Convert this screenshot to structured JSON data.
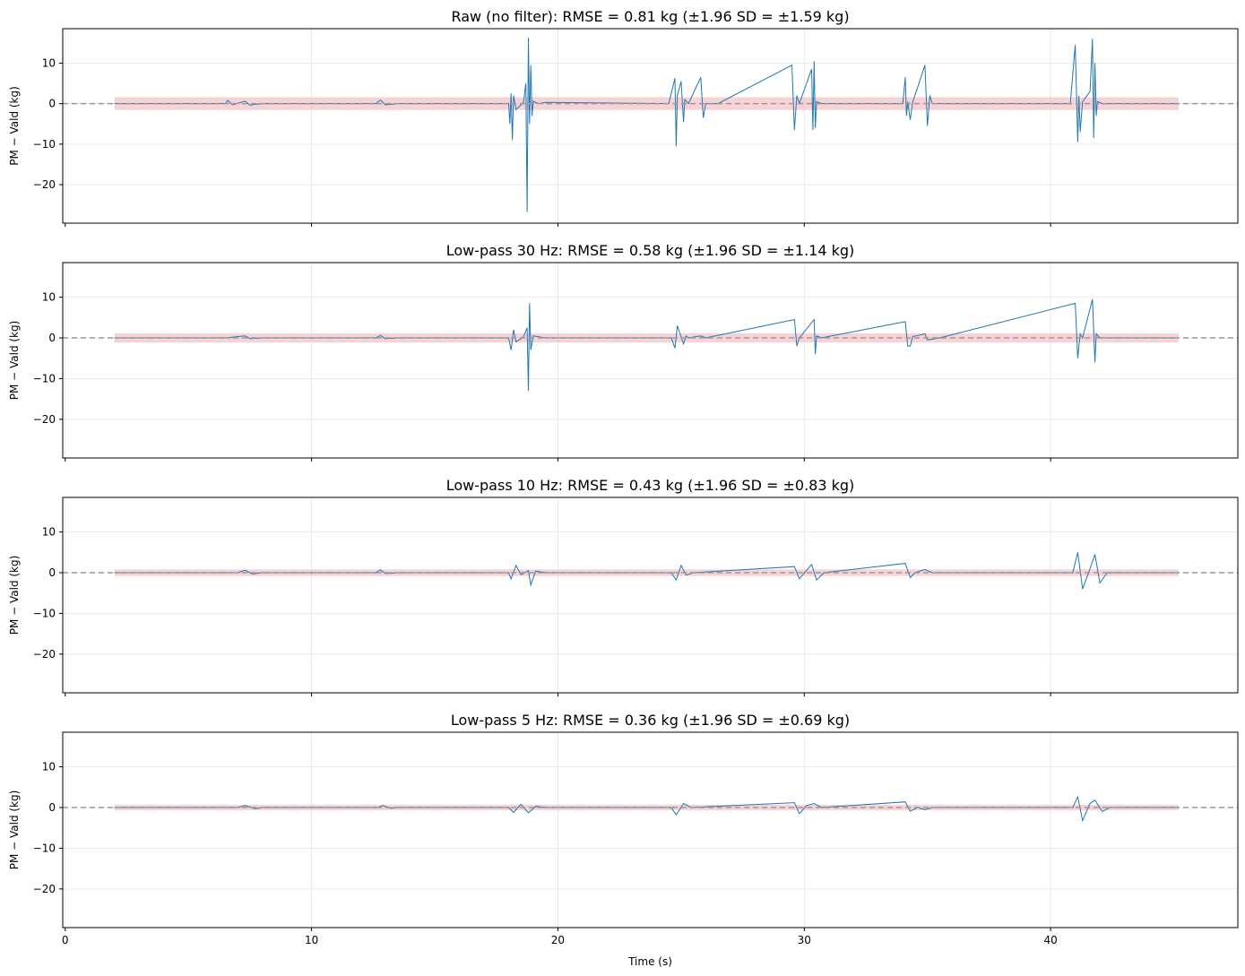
{
  "figure": {
    "xlabel": "Time (s)"
  },
  "chart_data": [
    {
      "type": "line",
      "title": "Raw (no filter): RMSE = 0.81 kg  (±1.96 SD = ±1.59 kg)",
      "ylabel": "PM − Vald (kg)",
      "xlabel": "",
      "xlim": [
        -0.1,
        47.6
      ],
      "ylim": [
        -29.5,
        18.5
      ],
      "xticks": [
        0,
        10,
        20,
        30,
        40
      ],
      "yticks": [
        -20,
        -10,
        0,
        10
      ],
      "grid": true,
      "band": [
        -1.59,
        1.59
      ],
      "refline": 0,
      "colors": {
        "line": "#1f77b4",
        "band": "#f4b6bb",
        "refline": "#999999"
      },
      "series": [
        {
          "x": [
            2.0,
            6.5,
            6.6,
            6.8,
            7.3,
            7.5,
            7.7,
            8.0,
            12.6,
            12.8,
            13.0,
            13.5,
            18.0,
            18.05,
            18.1,
            18.15,
            18.2,
            18.3,
            18.6,
            18.7,
            18.75,
            18.8,
            18.85,
            18.9,
            18.95,
            19.0,
            19.2,
            19.5,
            24.5,
            24.75,
            24.8,
            24.85,
            25.0,
            25.1,
            25.15,
            25.3,
            25.8,
            25.9,
            26.0,
            26.5,
            29.5,
            29.6,
            29.7,
            29.8,
            30.3,
            30.35,
            30.4,
            30.45,
            30.5,
            30.7,
            34.0,
            34.1,
            34.15,
            34.2,
            34.3,
            34.4,
            34.9,
            35.0,
            35.1,
            35.2,
            35.5,
            40.8,
            41.0,
            41.1,
            41.15,
            41.2,
            41.3,
            41.6,
            41.7,
            41.75,
            41.8,
            41.85,
            41.9,
            42.1,
            45.2
          ],
          "y": [
            0.0,
            0.0,
            0.8,
            -0.3,
            0.6,
            -0.4,
            -0.2,
            0.0,
            0.0,
            0.9,
            -0.3,
            0.0,
            0.0,
            -5.0,
            2.5,
            -9.0,
            2.0,
            -1.5,
            0.3,
            5.0,
            -26.8,
            16.2,
            -5.0,
            9.5,
            -3.0,
            0.6,
            0.0,
            0.3,
            0.0,
            6.3,
            -10.5,
            2.0,
            5.5,
            -4.5,
            1.0,
            0.0,
            6.5,
            -3.5,
            0.0,
            0.0,
            9.5,
            -6.5,
            2.0,
            0.0,
            8.5,
            -6.5,
            10.5,
            -6.0,
            0.5,
            0.0,
            0.0,
            6.5,
            -3.0,
            0.5,
            -4.0,
            0.3,
            9.5,
            -5.5,
            2.0,
            0.0,
            0.0,
            0.0,
            14.5,
            -9.5,
            2.0,
            -7.0,
            0.5,
            3.0,
            16.0,
            -8.5,
            10.0,
            -3.0,
            0.5,
            0.0,
            0.0
          ]
        }
      ]
    },
    {
      "type": "line",
      "title": "Low-pass 30 Hz: RMSE = 0.58 kg  (±1.96 SD = ±1.14 kg)",
      "ylabel": "PM − Vald (kg)",
      "xlabel": "",
      "xlim": [
        -0.1,
        47.6
      ],
      "ylim": [
        -29.5,
        18.5
      ],
      "xticks": [
        0,
        10,
        20,
        30,
        40
      ],
      "yticks": [
        -20,
        -10,
        0,
        10
      ],
      "grid": true,
      "band": [
        -1.14,
        1.14
      ],
      "refline": 0,
      "colors": {
        "line": "#1f77b4",
        "band": "#f4b6bb",
        "refline": "#999999"
      },
      "series": [
        {
          "x": [
            2.0,
            6.5,
            7.3,
            7.5,
            8.0,
            12.6,
            12.8,
            13.0,
            13.5,
            18.0,
            18.1,
            18.2,
            18.3,
            18.6,
            18.75,
            18.8,
            18.85,
            18.9,
            19.0,
            19.5,
            24.6,
            24.75,
            24.85,
            25.1,
            25.2,
            25.3,
            25.8,
            26.0,
            29.6,
            29.7,
            29.8,
            30.4,
            30.45,
            30.5,
            30.7,
            34.1,
            34.2,
            34.3,
            34.4,
            34.9,
            35.0,
            35.5,
            41.0,
            41.1,
            41.2,
            41.3,
            41.7,
            41.8,
            41.85,
            42.0,
            45.2
          ],
          "y": [
            0.0,
            0.0,
            0.5,
            -0.2,
            0.0,
            0.0,
            0.6,
            -0.2,
            0.0,
            0.0,
            -3.0,
            2.0,
            -1.0,
            0.2,
            2.5,
            -13.0,
            8.5,
            -3.0,
            0.5,
            0.0,
            0.0,
            -2.5,
            3.0,
            -1.5,
            0.5,
            0.0,
            0.5,
            0.0,
            4.5,
            -2.0,
            0.0,
            4.5,
            -4.0,
            0.5,
            0.0,
            4.0,
            -2.0,
            -2.0,
            0.3,
            1.0,
            -0.5,
            0.0,
            8.5,
            -5.0,
            1.0,
            0.0,
            9.5,
            -6.0,
            1.0,
            0.0,
            0.0
          ]
        }
      ]
    },
    {
      "type": "line",
      "title": "Low-pass 10 Hz: RMSE = 0.43 kg  (±1.96 SD = ±0.83 kg)",
      "ylabel": "PM − Vald (kg)",
      "xlabel": "",
      "xlim": [
        -0.1,
        47.6
      ],
      "ylim": [
        -29.5,
        18.5
      ],
      "xticks": [
        0,
        10,
        20,
        30,
        40
      ],
      "yticks": [
        -20,
        -10,
        0,
        10
      ],
      "grid": true,
      "band": [
        -0.83,
        0.83
      ],
      "refline": 0,
      "colors": {
        "line": "#1f77b4",
        "band": "#f4b6bb",
        "refline": "#999999"
      },
      "series": [
        {
          "x": [
            2.0,
            7.0,
            7.3,
            7.6,
            8.0,
            12.6,
            12.8,
            13.0,
            13.5,
            18.0,
            18.1,
            18.3,
            18.5,
            18.8,
            18.9,
            19.1,
            19.5,
            24.6,
            24.8,
            25.0,
            25.2,
            25.5,
            29.6,
            29.8,
            30.3,
            30.5,
            30.8,
            34.1,
            34.3,
            34.5,
            34.9,
            35.2,
            40.9,
            41.1,
            41.3,
            41.6,
            41.8,
            42.0,
            42.3,
            45.2
          ],
          "y": [
            0.0,
            0.0,
            0.6,
            -0.3,
            0.0,
            0.0,
            0.7,
            -0.2,
            0.0,
            0.0,
            -1.5,
            1.8,
            -0.5,
            0.5,
            -3.0,
            0.4,
            0.0,
            0.0,
            -1.8,
            1.8,
            -0.6,
            0.0,
            1.5,
            -1.5,
            2.0,
            -1.8,
            0.0,
            2.3,
            -1.2,
            0.0,
            0.8,
            0.0,
            0.0,
            5.0,
            -4.0,
            1.0,
            4.5,
            -2.5,
            0.0,
            0.0
          ]
        }
      ]
    },
    {
      "type": "line",
      "title": "Low-pass 5 Hz: RMSE = 0.36 kg  (±1.96 SD = ±0.69 kg)",
      "ylabel": "PM − Vald (kg)",
      "xlabel": "Time (s)",
      "xlim": [
        -0.1,
        47.6
      ],
      "ylim": [
        -29.5,
        18.5
      ],
      "xticks": [
        0,
        10,
        20,
        30,
        40
      ],
      "yticks": [
        -20,
        -10,
        0,
        10
      ],
      "grid": true,
      "band": [
        -0.69,
        0.69
      ],
      "refline": 0,
      "colors": {
        "line": "#1f77b4",
        "band": "#f4b6bb",
        "refline": "#999999"
      },
      "series": [
        {
          "x": [
            2.0,
            7.0,
            7.3,
            7.7,
            8.0,
            12.7,
            12.9,
            13.2,
            13.5,
            18.0,
            18.2,
            18.5,
            18.8,
            19.1,
            19.5,
            24.6,
            24.8,
            25.1,
            25.4,
            29.6,
            29.8,
            30.1,
            30.4,
            30.7,
            34.1,
            34.3,
            34.6,
            34.9,
            35.2,
            40.9,
            41.1,
            41.3,
            41.6,
            41.8,
            42.1,
            42.4,
            45.2
          ],
          "y": [
            0.0,
            0.0,
            0.5,
            -0.3,
            0.0,
            0.0,
            0.5,
            -0.2,
            0.0,
            0.0,
            -1.2,
            0.8,
            -1.3,
            0.3,
            0.0,
            0.0,
            -1.8,
            1.0,
            0.0,
            1.2,
            -1.5,
            0.5,
            1.0,
            0.0,
            1.4,
            -0.9,
            0.0,
            -0.5,
            0.0,
            0.0,
            2.6,
            -3.2,
            1.0,
            1.8,
            -1.0,
            0.0,
            0.0
          ]
        }
      ]
    }
  ]
}
